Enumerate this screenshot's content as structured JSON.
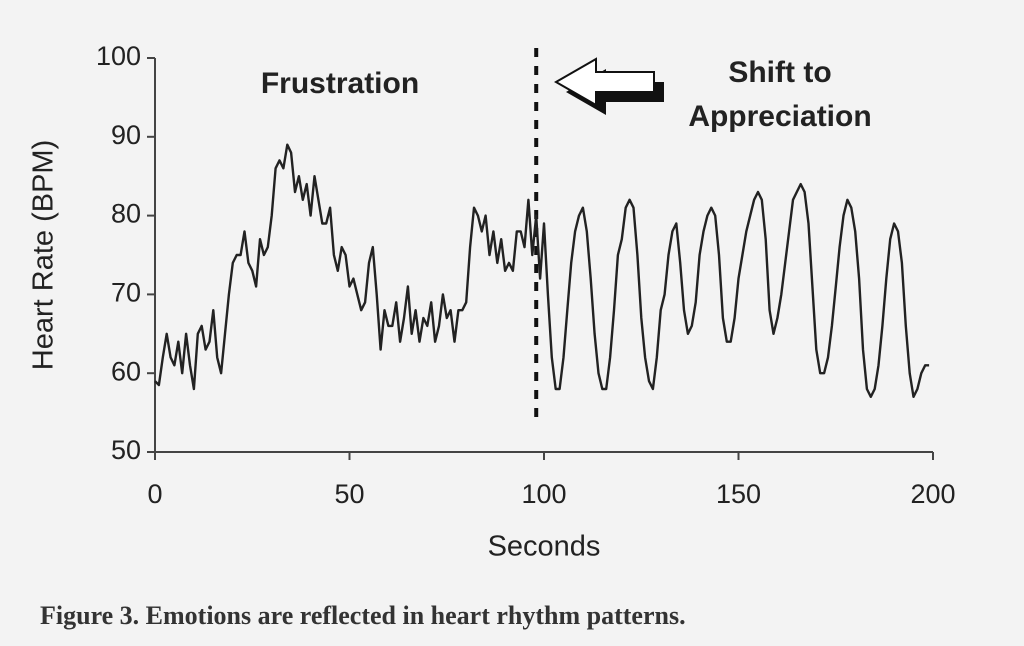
{
  "chart_data": {
    "type": "line",
    "caption": "Figure 3. Emotions are reflected in heart rhythm patterns.",
    "xlabel": "Seconds",
    "ylabel": "Heart Rate (BPM)",
    "annotations": [
      {
        "text": "Frustration"
      },
      {
        "text": "Shift to"
      },
      {
        "text": "Appreciation"
      }
    ],
    "divider_x": 98,
    "xlim": [
      0,
      200
    ],
    "xticks": [
      0,
      50,
      100,
      150,
      200
    ],
    "ylim": [
      50,
      100
    ],
    "yticks": [
      50,
      60,
      70,
      80,
      90,
      100
    ],
    "grid": false,
    "x": [
      0,
      1,
      2,
      3,
      4,
      5,
      6,
      7,
      8,
      9,
      10,
      11,
      12,
      13,
      14,
      15,
      16,
      17,
      18,
      19,
      20,
      21,
      22,
      23,
      24,
      25,
      26,
      27,
      28,
      29,
      30,
      31,
      32,
      33,
      34,
      35,
      36,
      37,
      38,
      39,
      40,
      41,
      42,
      43,
      44,
      45,
      46,
      47,
      48,
      49,
      50,
      51,
      52,
      53,
      54,
      55,
      56,
      57,
      58,
      59,
      60,
      61,
      62,
      63,
      64,
      65,
      66,
      67,
      68,
      69,
      70,
      71,
      72,
      73,
      74,
      75,
      76,
      77,
      78,
      79,
      80,
      81,
      82,
      83,
      84,
      85,
      86,
      87,
      88,
      89,
      90,
      91,
      92,
      93,
      94,
      95,
      96,
      97,
      98,
      99,
      100,
      101,
      102,
      103,
      104,
      105,
      106,
      107,
      108,
      109,
      110,
      111,
      112,
      113,
      114,
      115,
      116,
      117,
      118,
      119,
      120,
      121,
      122,
      123,
      124,
      125,
      126,
      127,
      128,
      129,
      130,
      131,
      132,
      133,
      134,
      135,
      136,
      137,
      138,
      139,
      140,
      141,
      142,
      143,
      144,
      145,
      146,
      147,
      148,
      149,
      150,
      151,
      152,
      153,
      154,
      155,
      156,
      157,
      158,
      159,
      160,
      161,
      162,
      163,
      164,
      165,
      166,
      167,
      168,
      169,
      170,
      171,
      172,
      173,
      174,
      175,
      176,
      177,
      178,
      179,
      180,
      181,
      182,
      183,
      184,
      185,
      186,
      187,
      188,
      189,
      190,
      191,
      192,
      193,
      194,
      195,
      196,
      197,
      198,
      199
    ],
    "series": [
      {
        "color": "#222222",
        "values": [
          59,
          58.5,
          62,
          65,
          62,
          61,
          64,
          60,
          65,
          61,
          58,
          65,
          66,
          63,
          64,
          68,
          62,
          60,
          65,
          70,
          74,
          75,
          75,
          78,
          74,
          73,
          71,
          77,
          75,
          76,
          80,
          86,
          87,
          86,
          89,
          88,
          83,
          85,
          82,
          84,
          80,
          85,
          82,
          79,
          79,
          81,
          75,
          73,
          76,
          75,
          71,
          72,
          70,
          68,
          69,
          74,
          76,
          70,
          63,
          68,
          66,
          66,
          69,
          64,
          67,
          71,
          65,
          68,
          64,
          67,
          66,
          69,
          64,
          66,
          70,
          67,
          68,
          64,
          68,
          68,
          69,
          76,
          81,
          80,
          78,
          80,
          75,
          78,
          74,
          77,
          73,
          74,
          73,
          78,
          78,
          76,
          82,
          75,
          80,
          72,
          79,
          70,
          62,
          58,
          58,
          62,
          68,
          74,
          78,
          80,
          81,
          78,
          72,
          65,
          60,
          58,
          58,
          62,
          68,
          75,
          77,
          81,
          82,
          81,
          75,
          67,
          62,
          59,
          58,
          62,
          68,
          70,
          75,
          78,
          79,
          74,
          68,
          65,
          66,
          69,
          75,
          78,
          80,
          81,
          80,
          75,
          67,
          64,
          64,
          67,
          72,
          75,
          78,
          80,
          82,
          83,
          82,
          77,
          68,
          65,
          67,
          70,
          74,
          78,
          82,
          83,
          84,
          83,
          79,
          71,
          63,
          60,
          60,
          62,
          66,
          71,
          76,
          80,
          82,
          81,
          78,
          72,
          63,
          58,
          57,
          58,
          61,
          66,
          72,
          77,
          79,
          78,
          74,
          66,
          60,
          57,
          58,
          60,
          61,
          61
        ]
      }
    ]
  }
}
